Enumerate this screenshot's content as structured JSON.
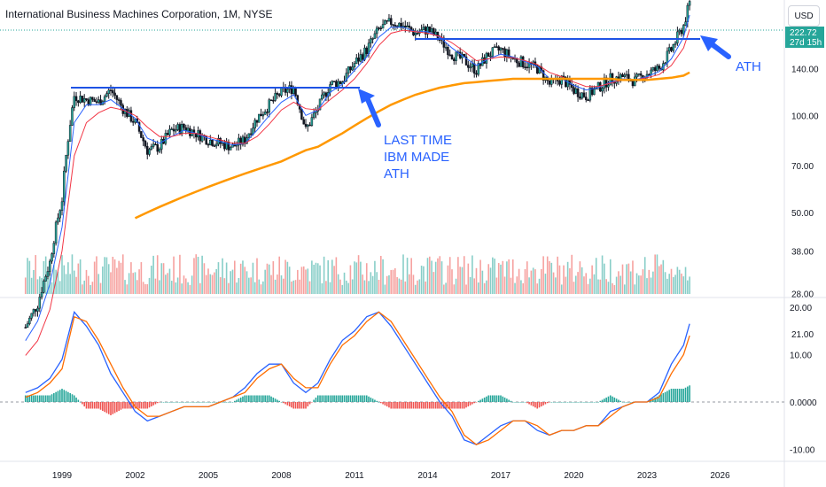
{
  "header": {
    "title": "International Business Machines Corporation, 1M, NYSE",
    "currency_button": "USD"
  },
  "price_badge": {
    "price": "222.72",
    "countdown": "27d 15h",
    "color": "#26a69a"
  },
  "colors": {
    "up_candle": "#26a69a",
    "down_candle": "#ef5350",
    "ma_blue": "#2962ff",
    "ma_red": "#f23645",
    "ma_orange": "#ff9800",
    "annotation": "#2962ff",
    "macd_line": "#2962ff",
    "signal_line": "#ff6d00",
    "hist_pos": "#26a69a",
    "hist_neg": "#ef5350"
  },
  "chart_data": [
    {
      "type": "line",
      "name": "price-pane",
      "scale": "log",
      "x_tick_labels": [
        "1999",
        "2002",
        "2005",
        "2008",
        "2011",
        "2014",
        "2017",
        "2020",
        "2023",
        "2026"
      ],
      "y_tick_labels": [
        "140.00",
        "100.00",
        "70.00",
        "50.00",
        "38.00",
        "28.00",
        "21.00"
      ],
      "x": [
        1997.5,
        1998.0,
        1998.5,
        1999.0,
        1999.5,
        2000.0,
        2000.5,
        2001.0,
        2001.5,
        2002.0,
        2002.5,
        2003.0,
        2003.5,
        2004.0,
        2004.5,
        2005.0,
        2005.5,
        2006.0,
        2006.5,
        2007.0,
        2007.5,
        2008.0,
        2008.5,
        2009.0,
        2009.5,
        2010.0,
        2010.5,
        2011.0,
        2011.5,
        2012.0,
        2012.5,
        2013.0,
        2013.5,
        2014.0,
        2014.5,
        2015.0,
        2015.5,
        2016.0,
        2016.5,
        2017.0,
        2017.5,
        2018.0,
        2018.5,
        2019.0,
        2019.5,
        2020.0,
        2020.5,
        2021.0,
        2021.5,
        2022.0,
        2022.5,
        2023.0,
        2023.5,
        2024.0,
        2024.5,
        2024.75
      ],
      "series": [
        {
          "values": [
            22,
            26,
            35,
            55,
            115,
            112,
            110,
            120,
            105,
            95,
            78,
            80,
            90,
            92,
            88,
            84,
            82,
            80,
            84,
            98,
            108,
            118,
            122,
            90,
            105,
            125,
            128,
            145,
            160,
            185,
            195,
            190,
            180,
            185,
            172,
            155,
            148,
            138,
            155,
            160,
            150,
            145,
            140,
            125,
            130,
            120,
            115,
            122,
            130,
            132,
            128,
            135,
            140,
            160,
            190,
            222.72
          ]
        },
        {
          "values": [
            20,
            23,
            30,
            45,
            95,
            108,
            108,
            112,
            105,
            98,
            85,
            82,
            86,
            90,
            88,
            85,
            83,
            81,
            82,
            90,
            100,
            110,
            116,
            100,
            104,
            118,
            125,
            138,
            152,
            175,
            188,
            188,
            182,
            182,
            175,
            162,
            152,
            143,
            150,
            155,
            152,
            147,
            142,
            130,
            130,
            124,
            120,
            122,
            127,
            130,
            129,
            132,
            137,
            150,
            175,
            205
          ]
        },
        {
          "values": [
            18,
            20,
            25,
            38,
            75,
            95,
            102,
            106,
            104,
            100,
            92,
            86,
            86,
            88,
            88,
            86,
            84,
            82,
            82,
            86,
            94,
            104,
            110,
            105,
            104,
            112,
            120,
            130,
            145,
            165,
            180,
            184,
            182,
            180,
            176,
            168,
            158,
            148,
            150,
            152,
            151,
            148,
            144,
            136,
            132,
            127,
            123,
            123,
            126,
            129,
            129,
            131,
            134,
            143,
            162,
            185
          ]
        },
        {
          "values": [
            null,
            null,
            null,
            null,
            null,
            null,
            null,
            null,
            null,
            48,
            50,
            52,
            54,
            56,
            58,
            60,
            62,
            64,
            66,
            68,
            70,
            72,
            75,
            78,
            80,
            84,
            88,
            93,
            98,
            103,
            108,
            112,
            116,
            119,
            122,
            124,
            126,
            127,
            128,
            129,
            130,
            130,
            130,
            130,
            130,
            130,
            130,
            130,
            130,
            129,
            129,
            129,
            130,
            131,
            133,
            136
          ]
        }
      ]
    },
    {
      "type": "line",
      "name": "macd-pane",
      "y_tick_labels": [
        "20.00",
        "10.00",
        "0.0000",
        "-10.00"
      ],
      "x": [
        1997.5,
        1998.0,
        1998.5,
        1999.0,
        1999.5,
        2000.0,
        2000.5,
        2001.0,
        2001.5,
        2002.0,
        2002.5,
        2003.0,
        2003.5,
        2004.0,
        2004.5,
        2005.0,
        2005.5,
        2006.0,
        2006.5,
        2007.0,
        2007.5,
        2008.0,
        2008.5,
        2009.0,
        2009.5,
        2010.0,
        2010.5,
        2011.0,
        2011.5,
        2012.0,
        2012.5,
        2013.0,
        2013.5,
        2014.0,
        2014.5,
        2015.0,
        2015.5,
        2016.0,
        2016.5,
        2017.0,
        2017.5,
        2018.0,
        2018.5,
        2019.0,
        2019.5,
        2020.0,
        2020.5,
        2021.0,
        2021.5,
        2022.0,
        2022.5,
        2023.0,
        2023.5,
        2024.0,
        2024.5,
        2024.75
      ],
      "series": [
        {
          "values": [
            2,
            3,
            5,
            9,
            19,
            16,
            12,
            6,
            2,
            -2,
            -4,
            -3,
            -2,
            -1,
            -1,
            -1,
            0,
            1,
            3,
            6,
            8,
            8,
            4,
            2,
            4,
            9,
            13,
            15,
            18,
            19,
            16,
            12,
            8,
            4,
            0,
            -3,
            -8,
            -9,
            -7,
            -5,
            -4,
            -4,
            -6,
            -7,
            -6,
            -6,
            -5,
            -5,
            -2,
            -1,
            0,
            0,
            2,
            8,
            12,
            16.5
          ]
        },
        {
          "values": [
            1,
            2,
            4,
            7,
            18,
            17,
            13,
            8,
            3,
            -1,
            -3,
            -3,
            -2,
            -1,
            -1,
            -1,
            0,
            1,
            2,
            5,
            7,
            8,
            5,
            3,
            3,
            8,
            12,
            14,
            17,
            19,
            17,
            13,
            9,
            5,
            1,
            -2,
            -7,
            -9,
            -8,
            -6,
            -4,
            -4,
            -5,
            -7,
            -6,
            -6,
            -5,
            -5,
            -3,
            -1,
            0,
            0,
            1,
            6,
            10,
            14
          ]
        }
      ]
    }
  ],
  "annotations": {
    "ath_label": "ATH",
    "last_time_lines": [
      "LAST TIME",
      "IBM MADE",
      "ATH"
    ]
  }
}
